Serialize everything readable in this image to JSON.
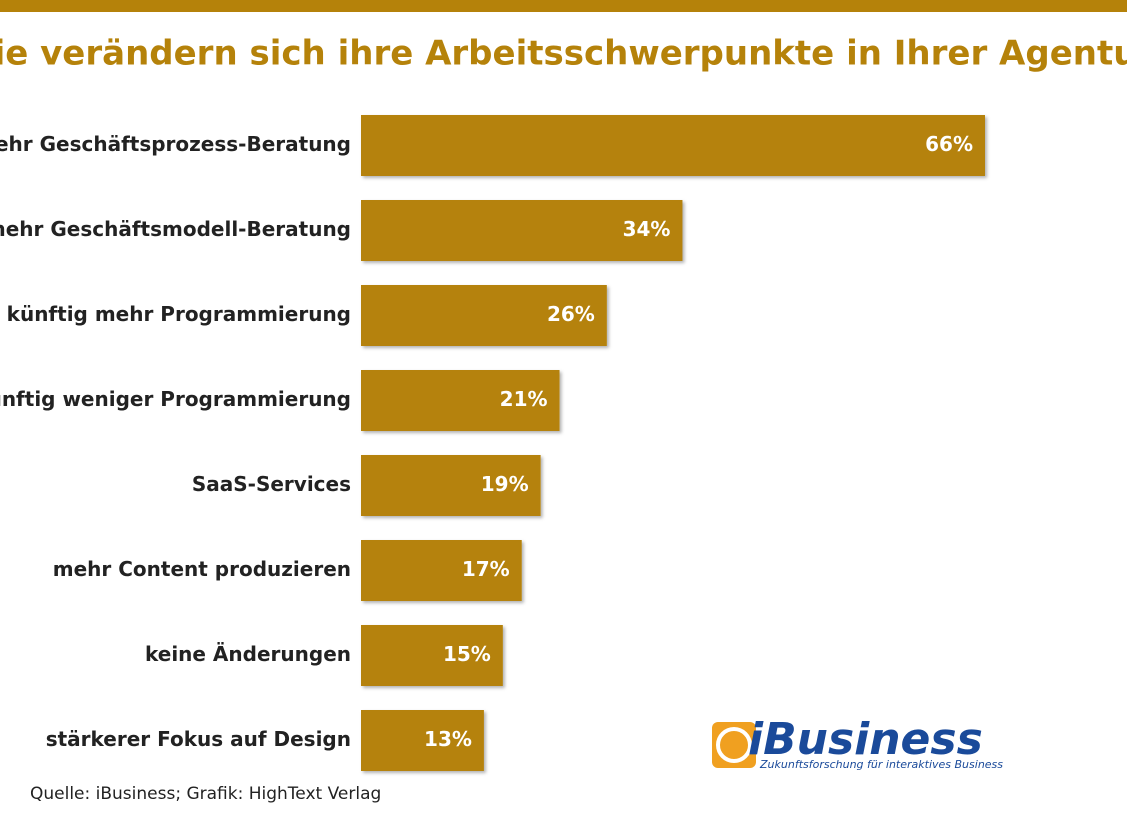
{
  "chart_data": {
    "type": "bar",
    "orientation": "horizontal",
    "title": "Wie verändern sich ihre Arbeitsschwerpunkte in Ihrer Agentur?",
    "categories": [
      "mehr Geschäftsprozess-Beratung",
      "mehr Geschäftsmodell-Beratung",
      "künftig mehr Programmierung",
      "künftig weniger Programmierung",
      "SaaS-Services",
      "mehr Content produzieren",
      "keine Änderungen",
      "stärkerer Fokus auf Design"
    ],
    "values": [
      66,
      34,
      26,
      21,
      19,
      17,
      15,
      13
    ],
    "value_labels": [
      "66%",
      "34%",
      "26%",
      "21%",
      "19%",
      "17%",
      "15%",
      "13%"
    ],
    "color": "#b5820a",
    "source": "Quelle: iBusiness; Grafik: HighText Verlag",
    "logo": {
      "name": "iBusiness",
      "tagline": "Zukunftsforschung für interaktives Business"
    }
  }
}
